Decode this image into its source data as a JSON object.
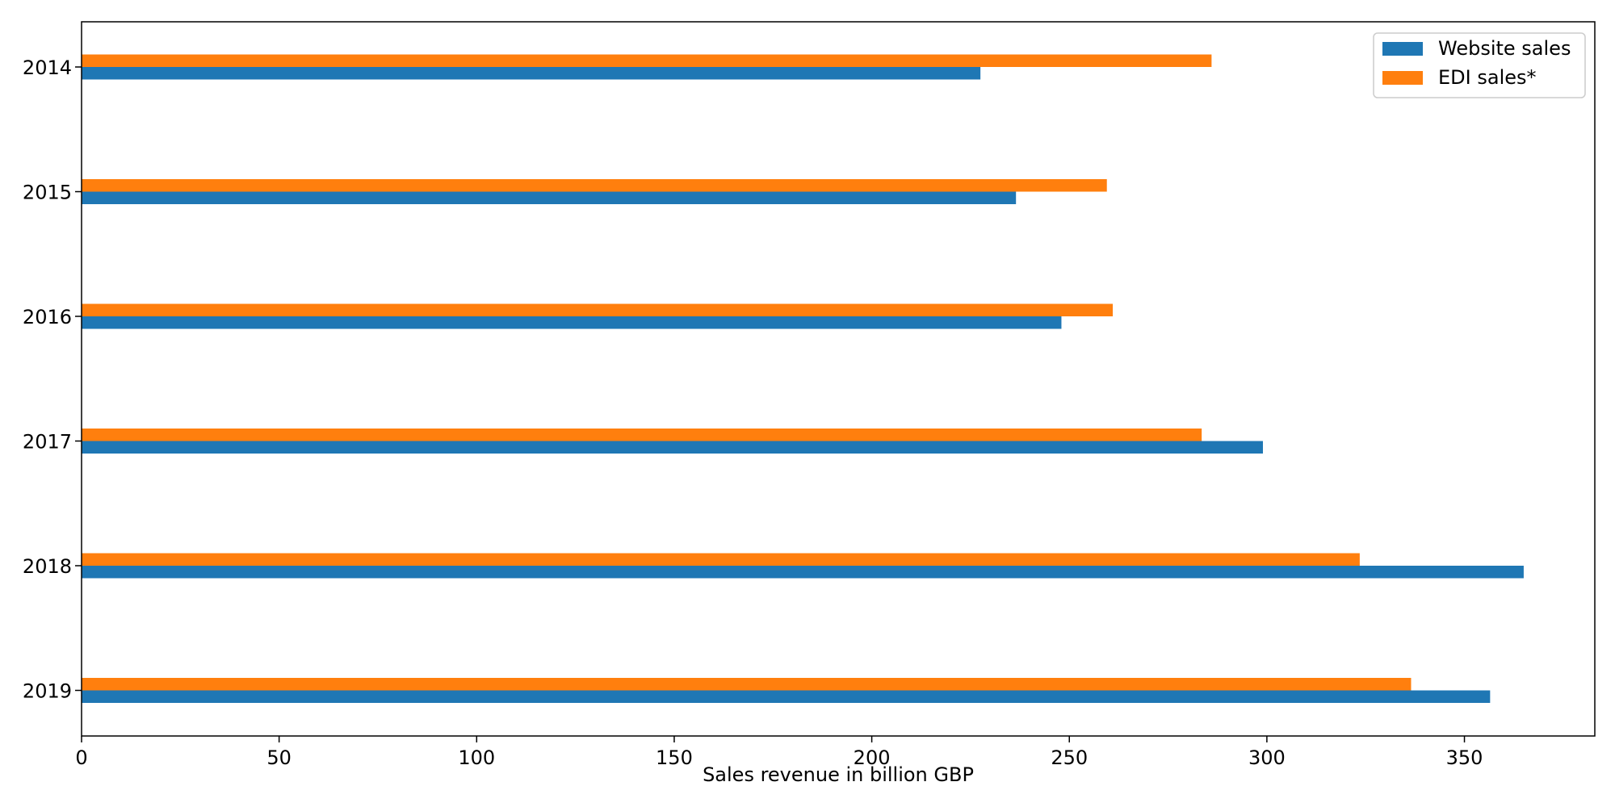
{
  "chart_data": {
    "type": "bar",
    "orientation": "horizontal",
    "categories": [
      "2014",
      "2015",
      "2016",
      "2017",
      "2018",
      "2019"
    ],
    "series": [
      {
        "name": "Website sales",
        "color": "#1f77b4",
        "values": [
          227.5,
          236.5,
          248.0,
          299.0,
          365.0,
          356.5
        ]
      },
      {
        "name": "EDI sales*",
        "color": "#ff7f0e",
        "values": [
          286.0,
          259.5,
          261.0,
          283.5,
          323.5,
          336.5
        ]
      }
    ],
    "title": "",
    "xlabel": "Sales revenue in billion GBP",
    "ylabel": "",
    "xlim": [
      0,
      383
    ],
    "xticks": [
      0,
      50,
      100,
      150,
      200,
      250,
      300,
      350
    ],
    "legend_position": "top-right",
    "grid": false
  }
}
